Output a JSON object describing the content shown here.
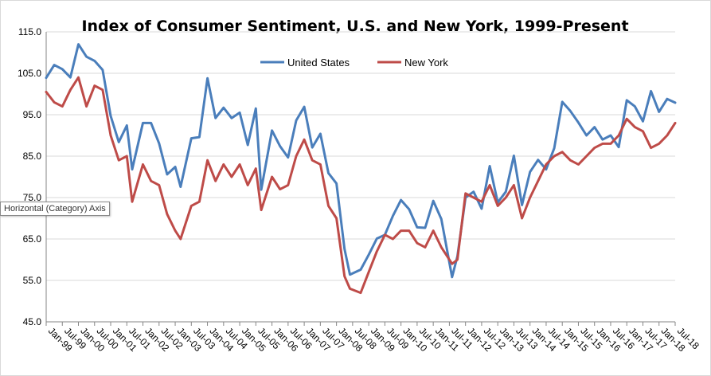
{
  "chart_data": {
    "type": "line",
    "title": "Index of Consumer Sentiment, U.S. and New York, 1999-Present",
    "ylim": [
      45,
      115
    ],
    "yticks": [
      "45.0",
      "55.0",
      "65.0",
      "75.0",
      "85.0",
      "95.0",
      "105.0",
      "115.0"
    ],
    "xticks": [
      "Jan-99",
      "Jul-99",
      "Jan-00",
      "Jul-00",
      "Jan-01",
      "Jul-01",
      "Jan-02",
      "Jul-02",
      "Jan-03",
      "Jul-03",
      "Jan-04",
      "Jul-04",
      "Jan-05",
      "Jul-05",
      "Jan-06",
      "Jul-06",
      "Jan-07",
      "Jul-07",
      "Jan-08",
      "Jul-08",
      "Jan-09",
      "Jul-09",
      "Jan-10",
      "Jul-10",
      "Jan-11",
      "Jul-11",
      "Jan-12",
      "Jul-12",
      "Jan-13",
      "Jul-13",
      "Jan-14",
      "Jul-14",
      "Jan-15",
      "Jul-15",
      "Jan-16",
      "Jul-16",
      "Jan-17",
      "Jul-17",
      "Jan-18",
      "Jul-18"
    ],
    "grid": "horizontal",
    "legend": "top-center",
    "series": [
      {
        "name": "United States",
        "color": "#4a7ebb",
        "points": [
          [
            "Jan-99",
            103.9
          ],
          [
            "Apr-99",
            107
          ],
          [
            "Jul-99",
            106
          ],
          [
            "Oct-99",
            104
          ],
          [
            "Jan-00",
            112
          ],
          [
            "Apr-00",
            109
          ],
          [
            "Jul-00",
            108
          ],
          [
            "Oct-00",
            105.8
          ],
          [
            "Jan-01",
            94.7
          ],
          [
            "Apr-01",
            88.4
          ],
          [
            "Jul-01",
            92.4
          ],
          [
            "Sep-01",
            81.8
          ],
          [
            "Jan-02",
            93
          ],
          [
            "Apr-02",
            93
          ],
          [
            "Jul-02",
            88.1
          ],
          [
            "Oct-02",
            80.6
          ],
          [
            "Jan-03",
            82.4
          ],
          [
            "Mar-03",
            77.6
          ],
          [
            "Jul-03",
            89.3
          ],
          [
            "Oct-03",
            89.6
          ],
          [
            "Jan-04",
            103.8
          ],
          [
            "Apr-04",
            94.2
          ],
          [
            "Jul-04",
            96.7
          ],
          [
            "Oct-04",
            94.2
          ],
          [
            "Jan-05",
            95.5
          ],
          [
            "Apr-05",
            87.7
          ],
          [
            "Jul-05",
            96.5
          ],
          [
            "Sep-05",
            76.9
          ],
          [
            "Jan-06",
            91.2
          ],
          [
            "Apr-06",
            87.4
          ],
          [
            "Jul-06",
            84.7
          ],
          [
            "Oct-06",
            93.6
          ],
          [
            "Jan-07",
            96.9
          ],
          [
            "Apr-07",
            87.1
          ],
          [
            "Jul-07",
            90.4
          ],
          [
            "Oct-07",
            80.9
          ],
          [
            "Jan-08",
            78.4
          ],
          [
            "Apr-08",
            62.6
          ],
          [
            "Jun-08",
            56.4
          ],
          [
            "Oct-08",
            57.6
          ],
          [
            "Jan-09",
            61.2
          ],
          [
            "Apr-09",
            65.1
          ],
          [
            "Jul-09",
            66
          ],
          [
            "Oct-09",
            70.6
          ],
          [
            "Jan-10",
            74.4
          ],
          [
            "Apr-10",
            72.2
          ],
          [
            "Jul-10",
            67.8
          ],
          [
            "Oct-10",
            67.7
          ],
          [
            "Jan-11",
            74.2
          ],
          [
            "Apr-11",
            69.8
          ],
          [
            "Aug-11",
            55.8
          ],
          [
            "Oct-11",
            60.8
          ],
          [
            "Jan-12",
            75
          ],
          [
            "Apr-12",
            76.4
          ],
          [
            "Jul-12",
            72.3
          ],
          [
            "Oct-12",
            82.6
          ],
          [
            "Jan-13",
            73.8
          ],
          [
            "Apr-13",
            76.4
          ],
          [
            "Jul-13",
            85.1
          ],
          [
            "Oct-13",
            73.2
          ],
          [
            "Jan-14",
            81.2
          ],
          [
            "Apr-14",
            84.1
          ],
          [
            "Jul-14",
            81.8
          ],
          [
            "Oct-14",
            86.9
          ],
          [
            "Jan-15",
            98.1
          ],
          [
            "Apr-15",
            95.9
          ],
          [
            "Jul-15",
            93.1
          ],
          [
            "Oct-15",
            90
          ],
          [
            "Jan-16",
            92
          ],
          [
            "Apr-16",
            89
          ],
          [
            "Jul-16",
            90
          ],
          [
            "Oct-16",
            87.2
          ],
          [
            "Jan-17",
            98.5
          ],
          [
            "Apr-17",
            97
          ],
          [
            "Jul-17",
            93.4
          ],
          [
            "Oct-17",
            100.7
          ],
          [
            "Jan-18",
            95.7
          ],
          [
            "Apr-18",
            98.8
          ],
          [
            "Jul-18",
            97.9
          ]
        ]
      },
      {
        "name": "New York",
        "color": "#be4b48",
        "points": [
          [
            "Jan-99",
            100.5
          ],
          [
            "Apr-99",
            98
          ],
          [
            "Jul-99",
            97
          ],
          [
            "Oct-99",
            101
          ],
          [
            "Jan-00",
            104
          ],
          [
            "Apr-00",
            97
          ],
          [
            "Jul-00",
            102
          ],
          [
            "Oct-00",
            101
          ],
          [
            "Jan-01",
            90
          ],
          [
            "Apr-01",
            84
          ],
          [
            "Jul-01",
            85
          ],
          [
            "Sep-01",
            74
          ],
          [
            "Jan-02",
            83
          ],
          [
            "Apr-02",
            79
          ],
          [
            "Jul-02",
            78
          ],
          [
            "Oct-02",
            71
          ],
          [
            "Jan-03",
            67
          ],
          [
            "Mar-03",
            65
          ],
          [
            "Jul-03",
            73
          ],
          [
            "Oct-03",
            74
          ],
          [
            "Jan-04",
            84
          ],
          [
            "Apr-04",
            79
          ],
          [
            "Jul-04",
            83
          ],
          [
            "Oct-04",
            80
          ],
          [
            "Jan-05",
            83
          ],
          [
            "Apr-05",
            78
          ],
          [
            "Jul-05",
            82
          ],
          [
            "Sep-05",
            72
          ],
          [
            "Jan-06",
            80
          ],
          [
            "Apr-06",
            77
          ],
          [
            "Jul-06",
            78
          ],
          [
            "Oct-06",
            85
          ],
          [
            "Jan-07",
            89
          ],
          [
            "Apr-07",
            84
          ],
          [
            "Jul-07",
            83
          ],
          [
            "Oct-07",
            73
          ],
          [
            "Jan-08",
            70
          ],
          [
            "Apr-08",
            56
          ],
          [
            "Jun-08",
            53
          ],
          [
            "Oct-08",
            52
          ],
          [
            "Jan-09",
            57
          ],
          [
            "Apr-09",
            62
          ],
          [
            "Jul-09",
            66
          ],
          [
            "Oct-09",
            65
          ],
          [
            "Jan-10",
            67
          ],
          [
            "Apr-10",
            67
          ],
          [
            "Jul-10",
            64
          ],
          [
            "Oct-10",
            63
          ],
          [
            "Jan-11",
            67
          ],
          [
            "Apr-11",
            63
          ],
          [
            "Aug-11",
            59
          ],
          [
            "Oct-11",
            60
          ],
          [
            "Jan-12",
            76
          ],
          [
            "Apr-12",
            75
          ],
          [
            "Jul-12",
            74
          ],
          [
            "Oct-12",
            78
          ],
          [
            "Jan-13",
            73
          ],
          [
            "Apr-13",
            75
          ],
          [
            "Jul-13",
            78
          ],
          [
            "Oct-13",
            70
          ],
          [
            "Jan-14",
            75
          ],
          [
            "Apr-14",
            79
          ],
          [
            "Jul-14",
            83
          ],
          [
            "Oct-14",
            85
          ],
          [
            "Jan-15",
            86
          ],
          [
            "Apr-15",
            84
          ],
          [
            "Jul-15",
            83
          ],
          [
            "Oct-15",
            85
          ],
          [
            "Jan-16",
            87
          ],
          [
            "Apr-16",
            88
          ],
          [
            "Jul-16",
            88
          ],
          [
            "Oct-16",
            90
          ],
          [
            "Jan-17",
            94
          ],
          [
            "Apr-17",
            92
          ],
          [
            "Jul-17",
            91
          ],
          [
            "Oct-17",
            87
          ],
          [
            "Jan-18",
            88
          ],
          [
            "Apr-18",
            90
          ],
          [
            "Jul-18",
            93
          ]
        ]
      }
    ]
  },
  "tooltip": {
    "text": "Horizontal (Category) Axis"
  }
}
